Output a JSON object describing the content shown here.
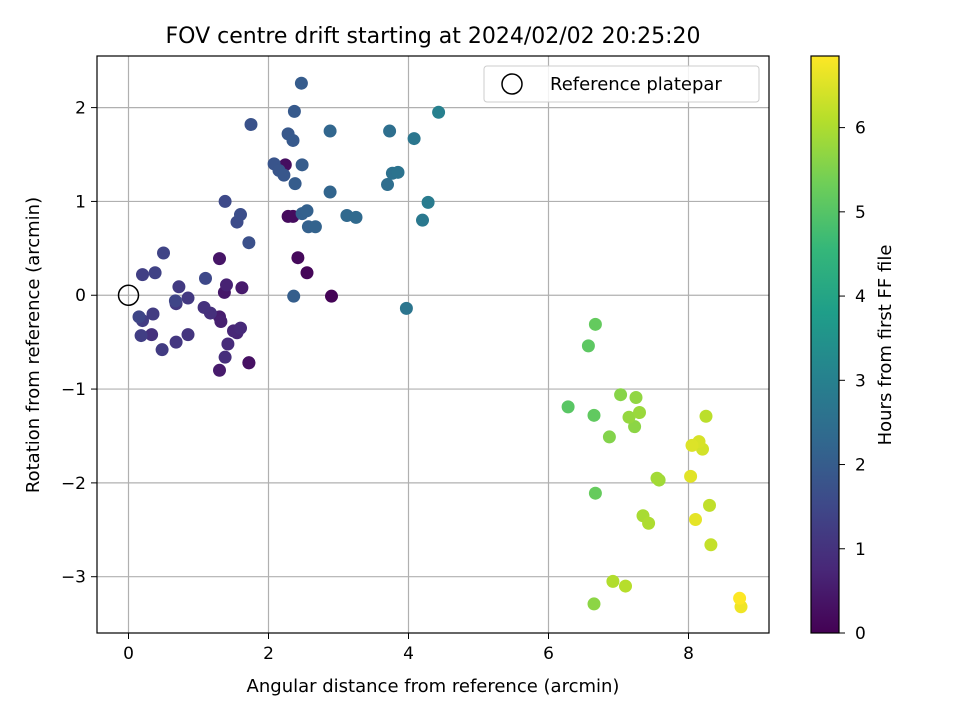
{
  "chart_data": {
    "type": "scatter",
    "title": "FOV centre drift starting at 2024/02/02 20:25:20",
    "xlabel": "Angular distance from reference (arcmin)",
    "ylabel": "Rotation from reference (arcmin)",
    "colorbar_label": "Hours from first FF file",
    "xlim": [
      -0.45,
      9.15
    ],
    "ylim": [
      -3.6,
      2.55
    ],
    "clim": [
      0,
      6.85
    ],
    "x_ticks": [
      0,
      2,
      4,
      6,
      8
    ],
    "y_ticks": [
      -3,
      -2,
      -1,
      0,
      1,
      2
    ],
    "colorbar_ticks": [
      0,
      1,
      2,
      3,
      4,
      5,
      6
    ],
    "grid": true,
    "legend": {
      "position": "top-right",
      "entries": [
        {
          "label": "Reference platepar",
          "marker": "open-circle",
          "x": 0,
          "y": 0
        }
      ]
    },
    "colormap": "viridis",
    "colormap_stops": [
      "#440154",
      "#482878",
      "#3e4989",
      "#31688e",
      "#26828e",
      "#1f9e89",
      "#35b779",
      "#6ece58",
      "#b5de2b",
      "#fde725"
    ],
    "points": [
      {
        "x": 2.9,
        "y": -0.01,
        "h": 0.05
      },
      {
        "x": 2.55,
        "y": 0.24,
        "h": 0.1
      },
      {
        "x": 2.42,
        "y": 0.4,
        "h": 0.15
      },
      {
        "x": 2.28,
        "y": 0.84,
        "h": 0.2
      },
      {
        "x": 2.35,
        "y": 0.84,
        "h": 0.22
      },
      {
        "x": 2.24,
        "y": 1.39,
        "h": 0.25
      },
      {
        "x": 1.72,
        "y": -0.72,
        "h": 0.3
      },
      {
        "x": 1.72,
        "y": -0.72,
        "h": 0.32
      },
      {
        "x": 1.3,
        "y": 0.39,
        "h": 0.4
      },
      {
        "x": 1.37,
        "y": 0.03,
        "h": 0.45
      },
      {
        "x": 1.62,
        "y": 0.08,
        "h": 0.5
      },
      {
        "x": 1.3,
        "y": -0.8,
        "h": 0.5
      },
      {
        "x": 1.3,
        "y": -0.23,
        "h": 0.55
      },
      {
        "x": 1.32,
        "y": -0.28,
        "h": 0.6
      },
      {
        "x": 1.4,
        "y": 0.11,
        "h": 0.65
      },
      {
        "x": 1.55,
        "y": -0.4,
        "h": 0.7
      },
      {
        "x": 1.5,
        "y": -0.38,
        "h": 0.75
      },
      {
        "x": 1.6,
        "y": -0.35,
        "h": 0.8
      },
      {
        "x": 1.42,
        "y": -0.52,
        "h": 0.85
      },
      {
        "x": 1.38,
        "y": -0.66,
        "h": 0.9
      },
      {
        "x": 1.17,
        "y": -0.19,
        "h": 0.95
      },
      {
        "x": 1.08,
        "y": -0.13,
        "h": 1.0
      },
      {
        "x": 0.85,
        "y": -0.42,
        "h": 1.05
      },
      {
        "x": 0.68,
        "y": -0.5,
        "h": 1.1
      },
      {
        "x": 0.68,
        "y": -0.09,
        "h": 1.12
      },
      {
        "x": 0.85,
        "y": -0.03,
        "h": 1.15
      },
      {
        "x": 0.72,
        "y": 0.09,
        "h": 1.18
      },
      {
        "x": 0.48,
        "y": -0.58,
        "h": 1.2
      },
      {
        "x": 0.35,
        "y": -0.2,
        "h": 1.22
      },
      {
        "x": 0.33,
        "y": -0.42,
        "h": 0.98
      },
      {
        "x": 0.2,
        "y": -0.27,
        "h": 1.25
      },
      {
        "x": 0.18,
        "y": -0.43,
        "h": 1.28
      },
      {
        "x": 0.2,
        "y": 0.22,
        "h": 1.3
      },
      {
        "x": 0.38,
        "y": 0.24,
        "h": 1.35
      },
      {
        "x": 0.5,
        "y": 0.45,
        "h": 1.4
      },
      {
        "x": 0.67,
        "y": -0.06,
        "h": 1.42
      },
      {
        "x": 0.15,
        "y": -0.23,
        "h": 1.45
      },
      {
        "x": 1.1,
        "y": 0.18,
        "h": 1.5
      },
      {
        "x": 1.38,
        "y": 1.0,
        "h": 1.55
      },
      {
        "x": 1.55,
        "y": 0.78,
        "h": 1.6
      },
      {
        "x": 1.6,
        "y": 0.86,
        "h": 1.65
      },
      {
        "x": 1.72,
        "y": 0.56,
        "h": 1.7
      },
      {
        "x": 1.75,
        "y": 1.82,
        "h": 1.75
      },
      {
        "x": 2.08,
        "y": 1.4,
        "h": 1.8
      },
      {
        "x": 2.15,
        "y": 1.33,
        "h": 1.82
      },
      {
        "x": 2.22,
        "y": 1.28,
        "h": 1.85
      },
      {
        "x": 2.28,
        "y": 1.72,
        "h": 1.9
      },
      {
        "x": 2.35,
        "y": 1.65,
        "h": 1.92
      },
      {
        "x": 2.37,
        "y": 1.96,
        "h": 1.95
      },
      {
        "x": 2.48,
        "y": 1.39,
        "h": 1.98
      },
      {
        "x": 2.38,
        "y": 1.19,
        "h": 2.0
      },
      {
        "x": 2.47,
        "y": 2.26,
        "h": 2.0
      },
      {
        "x": 2.36,
        "y": -0.01,
        "h": 2.05
      },
      {
        "x": 2.48,
        "y": 0.87,
        "h": 2.08
      },
      {
        "x": 2.55,
        "y": 0.9,
        "h": 2.1
      },
      {
        "x": 2.57,
        "y": 0.73,
        "h": 2.12
      },
      {
        "x": 2.67,
        "y": 0.73,
        "h": 2.15
      },
      {
        "x": 2.88,
        "y": 1.1,
        "h": 2.2
      },
      {
        "x": 2.88,
        "y": 1.75,
        "h": 2.25
      },
      {
        "x": 3.12,
        "y": 0.85,
        "h": 2.3
      },
      {
        "x": 3.25,
        "y": 0.83,
        "h": 2.35
      },
      {
        "x": 3.7,
        "y": 1.18,
        "h": 2.45
      },
      {
        "x": 3.73,
        "y": 1.75,
        "h": 2.5
      },
      {
        "x": 3.77,
        "y": 1.3,
        "h": 2.55
      },
      {
        "x": 3.85,
        "y": 1.31,
        "h": 2.6
      },
      {
        "x": 3.97,
        "y": -0.14,
        "h": 2.65
      },
      {
        "x": 4.08,
        "y": 1.67,
        "h": 2.7
      },
      {
        "x": 4.2,
        "y": 0.8,
        "h": 2.75
      },
      {
        "x": 4.28,
        "y": 0.99,
        "h": 2.85
      },
      {
        "x": 4.43,
        "y": 1.95,
        "h": 3.0
      },
      {
        "x": 6.28,
        "y": -1.19,
        "h": 5.05
      },
      {
        "x": 6.57,
        "y": -0.54,
        "h": 5.1
      },
      {
        "x": 6.65,
        "y": -1.28,
        "h": 5.15
      },
      {
        "x": 6.67,
        "y": -0.31,
        "h": 5.2
      },
      {
        "x": 6.67,
        "y": -2.11,
        "h": 5.22
      },
      {
        "x": 6.87,
        "y": -1.51,
        "h": 5.55
      },
      {
        "x": 6.65,
        "y": -3.29,
        "h": 5.65
      },
      {
        "x": 7.03,
        "y": -1.06,
        "h": 5.6
      },
      {
        "x": 7.23,
        "y": -1.4,
        "h": 5.65
      },
      {
        "x": 7.25,
        "y": -1.09,
        "h": 5.7
      },
      {
        "x": 7.15,
        "y": -1.3,
        "h": 5.75
      },
      {
        "x": 7.3,
        "y": -1.25,
        "h": 5.8
      },
      {
        "x": 7.58,
        "y": -1.97,
        "h": 5.85
      },
      {
        "x": 7.55,
        "y": -1.95,
        "h": 5.9
      },
      {
        "x": 7.35,
        "y": -2.35,
        "h": 5.95
      },
      {
        "x": 7.43,
        "y": -2.43,
        "h": 6.0
      },
      {
        "x": 6.92,
        "y": -3.05,
        "h": 6.05
      },
      {
        "x": 7.1,
        "y": -3.1,
        "h": 6.1
      },
      {
        "x": 8.25,
        "y": -1.29,
        "h": 6.15
      },
      {
        "x": 8.3,
        "y": -2.24,
        "h": 6.2
      },
      {
        "x": 8.32,
        "y": -2.66,
        "h": 6.25
      },
      {
        "x": 8.2,
        "y": -1.64,
        "h": 6.4
      },
      {
        "x": 8.15,
        "y": -1.56,
        "h": 6.45
      },
      {
        "x": 8.05,
        "y": -1.6,
        "h": 6.5
      },
      {
        "x": 8.03,
        "y": -1.93,
        "h": 6.55
      },
      {
        "x": 8.1,
        "y": -2.39,
        "h": 6.6
      },
      {
        "x": 8.75,
        "y": -3.32,
        "h": 6.7
      },
      {
        "x": 8.73,
        "y": -3.23,
        "h": 6.85
      }
    ]
  }
}
